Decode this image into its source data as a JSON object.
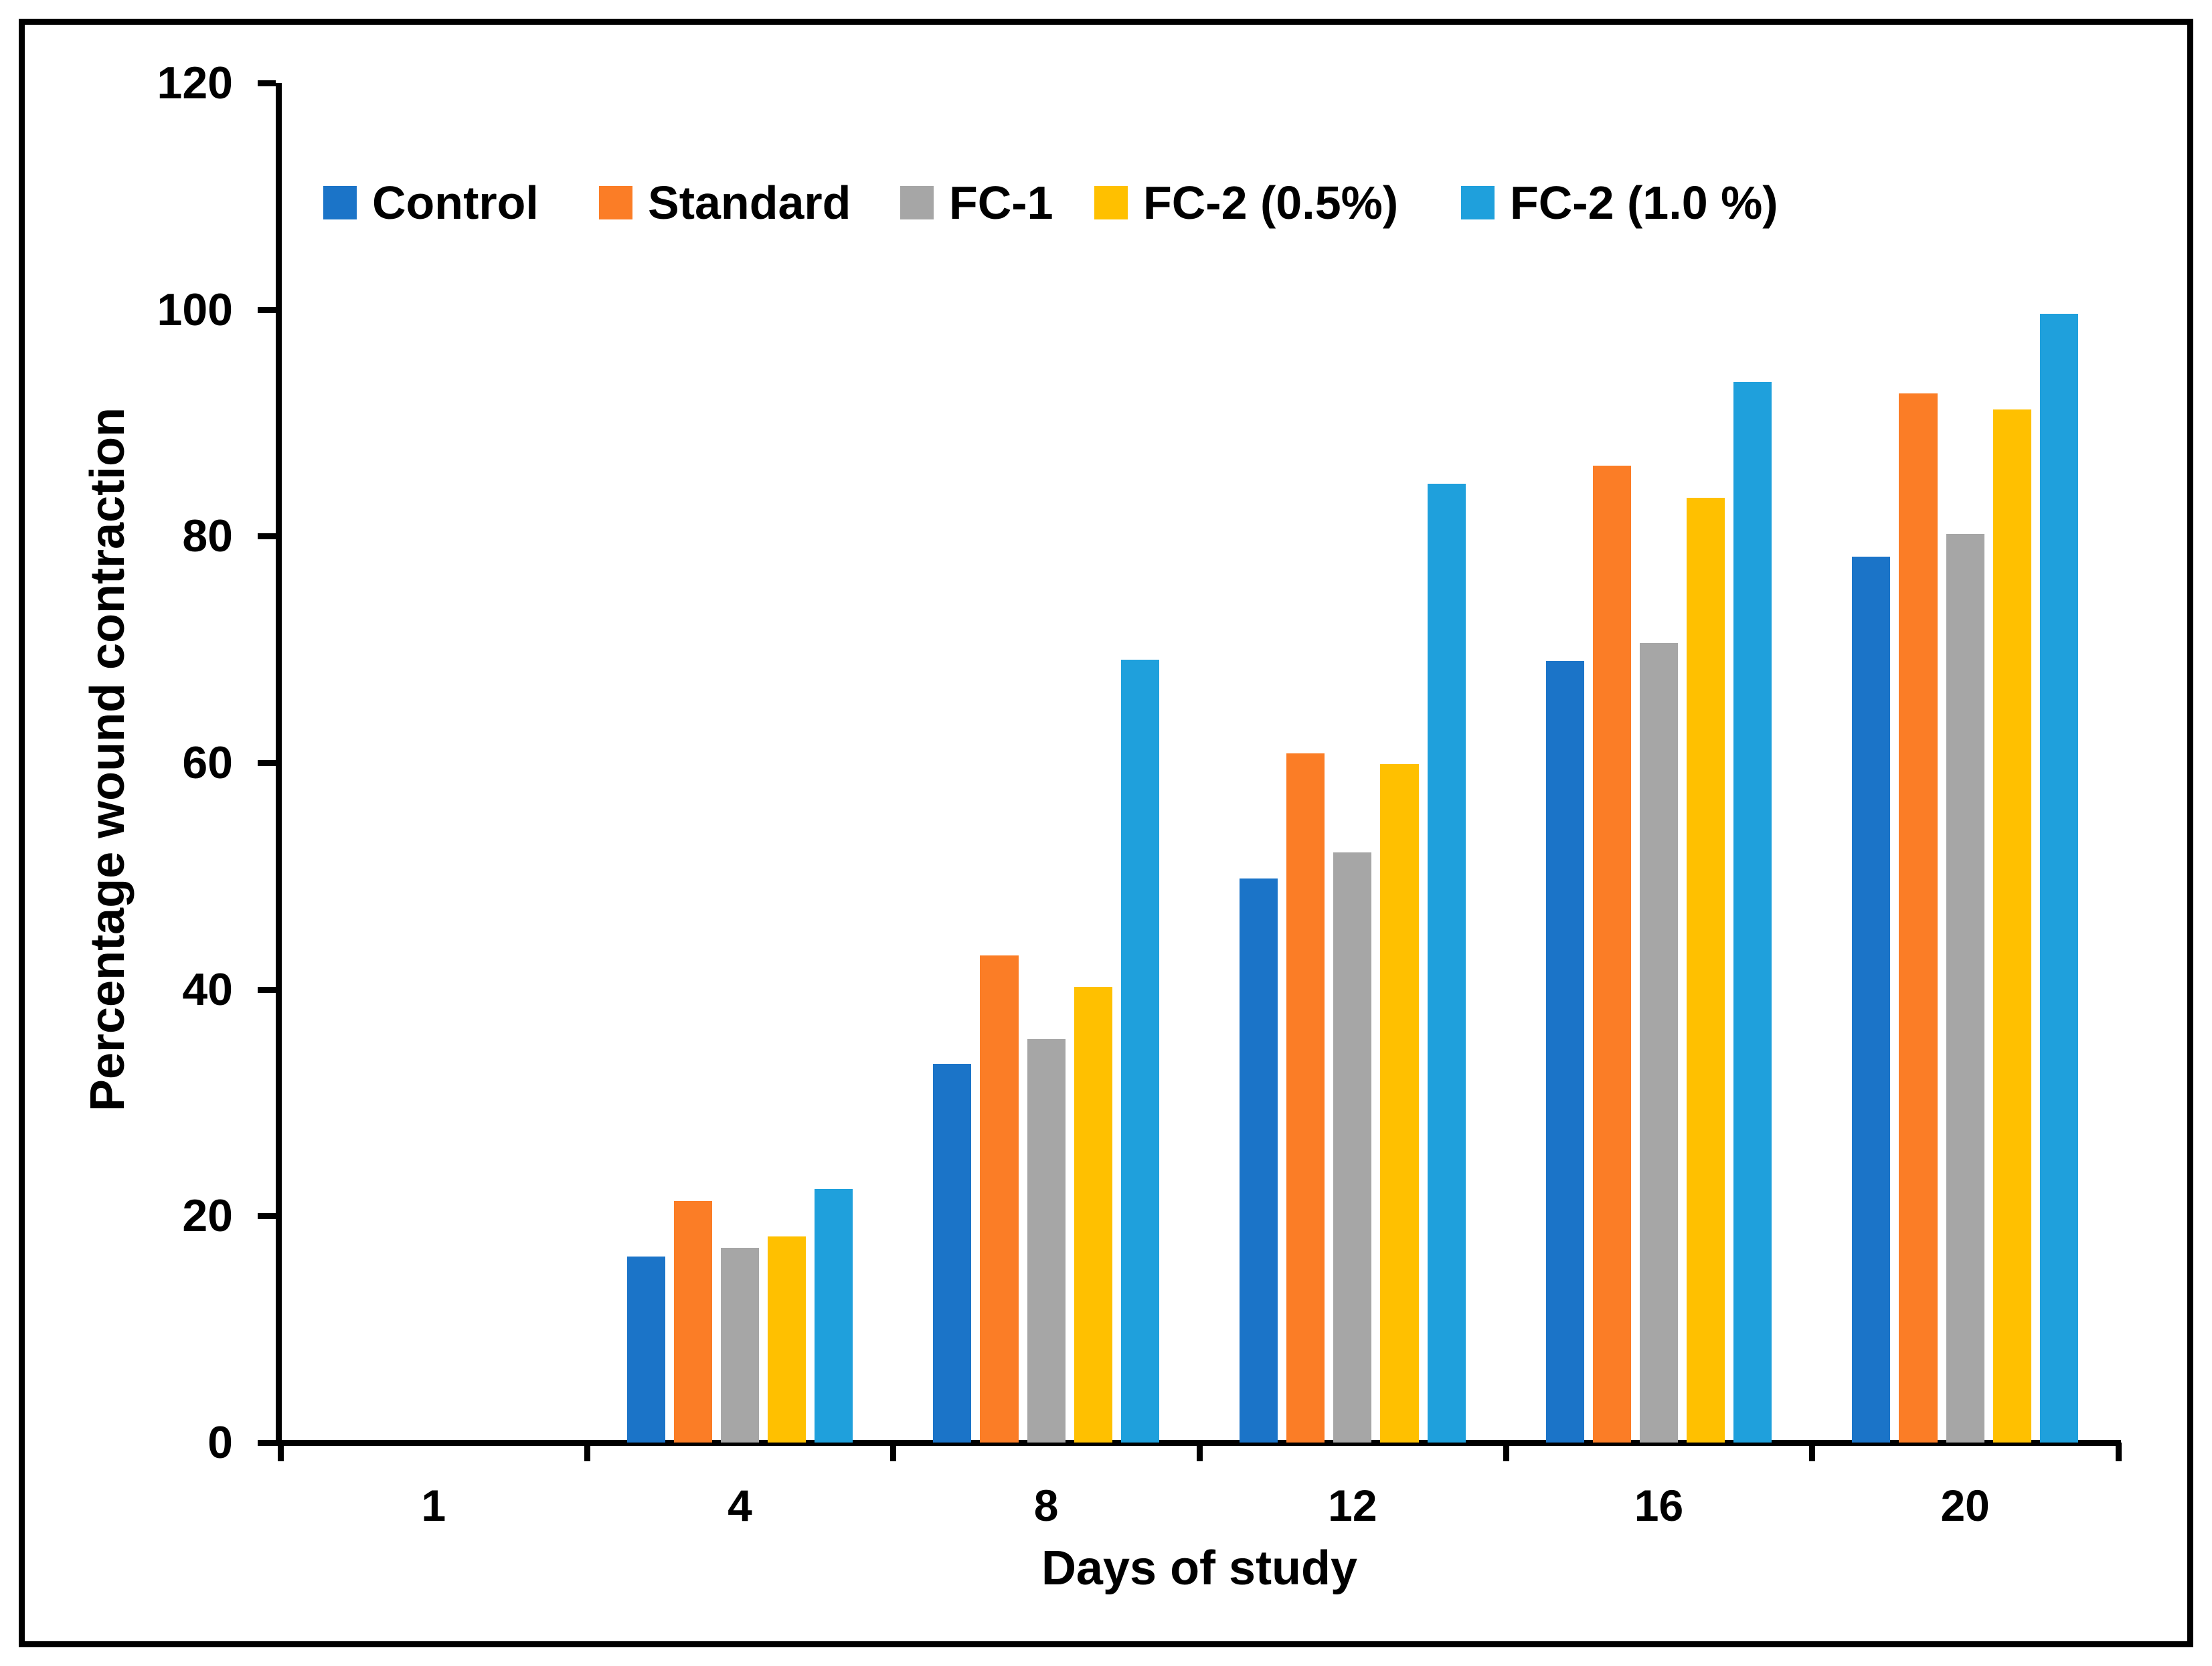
{
  "chart_data": {
    "type": "bar",
    "title": "",
    "xlabel": "Days of study",
    "ylabel": "Percentage wound contraction",
    "categories": [
      "1",
      "4",
      "8",
      "12",
      "16",
      "20"
    ],
    "series": [
      {
        "name": "Control",
        "color": "#1B74C8",
        "values": [
          0,
          16.4,
          33.4,
          49.8,
          69.0,
          78.2
        ]
      },
      {
        "name": "Standard",
        "color": "#FB7D26",
        "values": [
          0,
          21.3,
          43.0,
          60.8,
          86.2,
          92.6
        ]
      },
      {
        "name": "FC-1",
        "color": "#A6A6A6",
        "values": [
          0,
          17.2,
          35.6,
          52.1,
          70.6,
          80.2
        ]
      },
      {
        "name": "FC-2 (0.5%)",
        "color": "#FFC000",
        "values": [
          0,
          18.2,
          40.2,
          59.9,
          83.4,
          91.2
        ]
      },
      {
        "name": "FC-2 (1.0 %)",
        "color": "#1FA0DC",
        "values": [
          0,
          22.4,
          69.1,
          84.6,
          93.6,
          99.6
        ]
      }
    ],
    "ylim": [
      0,
      120
    ],
    "yticks": [
      0,
      20,
      40,
      60,
      80,
      100,
      120
    ],
    "grid": false,
    "legend_position": "top-inside",
    "axis_color": "#000000",
    "background_color": "#FFFFFF"
  }
}
